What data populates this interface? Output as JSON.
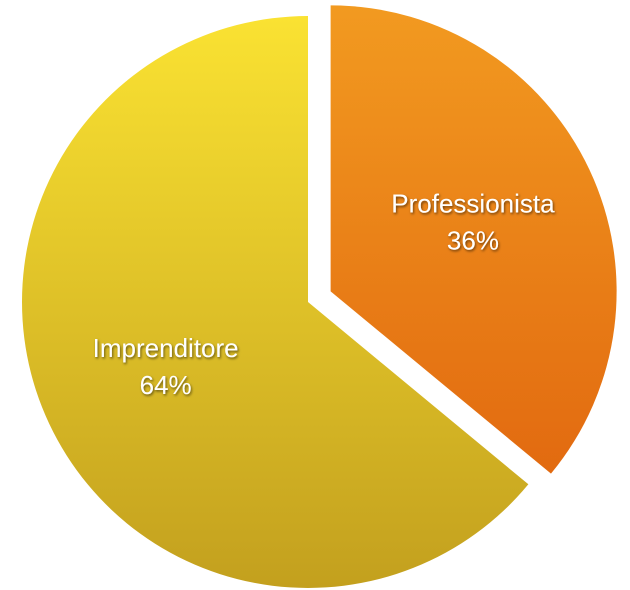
{
  "chart_data": {
    "type": "pie",
    "categories": [
      "Professionista",
      "Imprenditore"
    ],
    "values": [
      36,
      64
    ],
    "value_labels": [
      "36%",
      "64%"
    ],
    "colors": [
      [
        "#f29a20",
        "#e26a10"
      ],
      [
        "#fae232",
        "#c3a01e"
      ]
    ],
    "exploded": [
      true,
      false
    ]
  }
}
